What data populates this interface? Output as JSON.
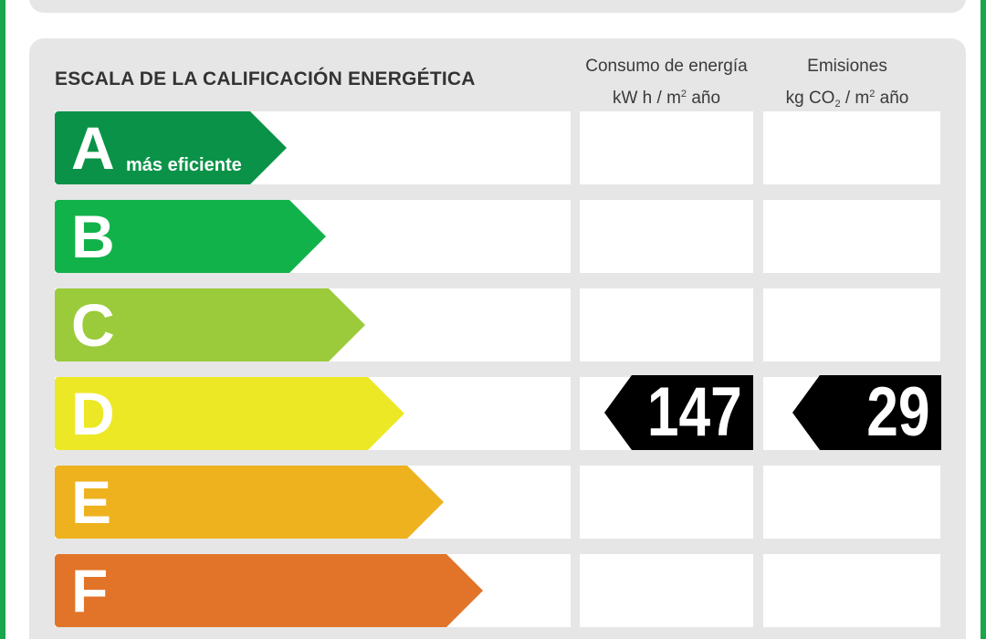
{
  "title": "ESCALA DE LA CALIFICACIÓN ENERGÉTICA",
  "columns": {
    "energy": {
      "line1": "Consumo de energía",
      "unit_prefix": "kW h  / m",
      "unit_sup": "2",
      "unit_suffix": " año"
    },
    "emissions": {
      "line1": "Emisiones",
      "unit_prefix": "kg CO",
      "unit_sub": "2",
      "unit_mid": "  / m",
      "unit_sup": "2",
      "unit_suffix": " año"
    }
  },
  "ratings": [
    {
      "letter": "A",
      "label": "más eficiente",
      "color": "#0a9348"
    },
    {
      "letter": "B",
      "label": "",
      "color": "#12b24b"
    },
    {
      "letter": "C",
      "label": "",
      "color": "#9bcb3b"
    },
    {
      "letter": "D",
      "label": "",
      "color": "#ede825"
    },
    {
      "letter": "E",
      "label": "",
      "color": "#eeb21f"
    },
    {
      "letter": "F",
      "label": "",
      "color": "#e17428"
    }
  ],
  "current": {
    "rating": "D",
    "energy_value": "147",
    "emissions_value": "29"
  },
  "colors": {
    "frame": "#1aa64a",
    "panel": "#e6e6e6",
    "tag": "#000000"
  }
}
